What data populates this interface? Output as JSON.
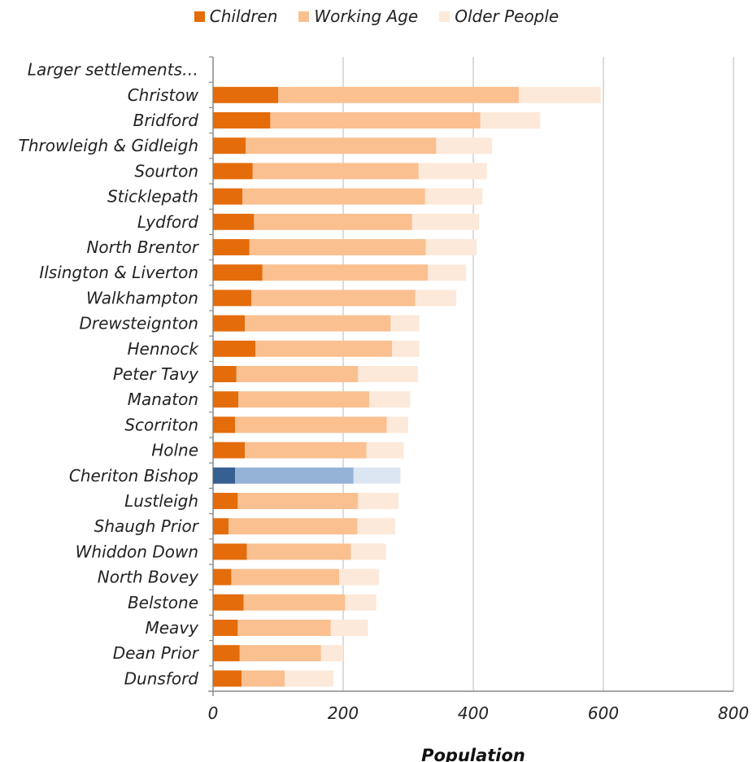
{
  "chart_data": {
    "type": "bar",
    "orientation": "horizontal",
    "stacked": true,
    "xlabel": "Population",
    "ylabel": "",
    "xlim": [
      0,
      800
    ],
    "xticks": [
      0,
      200,
      400,
      600,
      800
    ],
    "grid": true,
    "legend_position": "top-center",
    "categories": [
      "Larger settlements…",
      "Christow",
      "Bridford",
      "Throwleigh & Gidleigh",
      "Sourton",
      "Sticklepath",
      "Lydford",
      "North Brentor",
      "Ilsington & Liverton",
      "Walkhampton",
      "Drewsteignton",
      "Hennock",
      "Peter Tavy",
      "Manaton",
      "Scorriton",
      "Holne",
      "Cheriton Bishop",
      "Lustleigh",
      "Shaugh Prior",
      "Whiddon Down",
      "North Bovey",
      "Belstone",
      "Meavy",
      "Dean Prior",
      "Dunsford"
    ],
    "series": [
      {
        "name": "Children",
        "color": "#e46c0a",
        "values": [
          0,
          100,
          88,
          50,
          61,
          45,
          63,
          56,
          76,
          59,
          49,
          65,
          36,
          39,
          34,
          49,
          34,
          38,
          24,
          52,
          28,
          47,
          38,
          41,
          44
        ]
      },
      {
        "name": "Working Age",
        "color": "#fac090",
        "values": [
          0,
          370,
          323,
          293,
          255,
          281,
          243,
          271,
          254,
          252,
          224,
          210,
          187,
          201,
          233,
          187,
          182,
          185,
          198,
          160,
          166,
          156,
          143,
          125,
          66
        ]
      },
      {
        "name": "Older People",
        "color": "#fde9d9",
        "values": [
          0,
          126,
          92,
          86,
          105,
          88,
          103,
          78,
          59,
          63,
          44,
          42,
          92,
          63,
          33,
          57,
          72,
          62,
          58,
          54,
          61,
          48,
          57,
          34,
          75
        ]
      }
    ],
    "highlight": {
      "category": "Cheriton Bishop",
      "colors": [
        "#376092",
        "#95b3d7",
        "#dce6f2"
      ]
    }
  }
}
